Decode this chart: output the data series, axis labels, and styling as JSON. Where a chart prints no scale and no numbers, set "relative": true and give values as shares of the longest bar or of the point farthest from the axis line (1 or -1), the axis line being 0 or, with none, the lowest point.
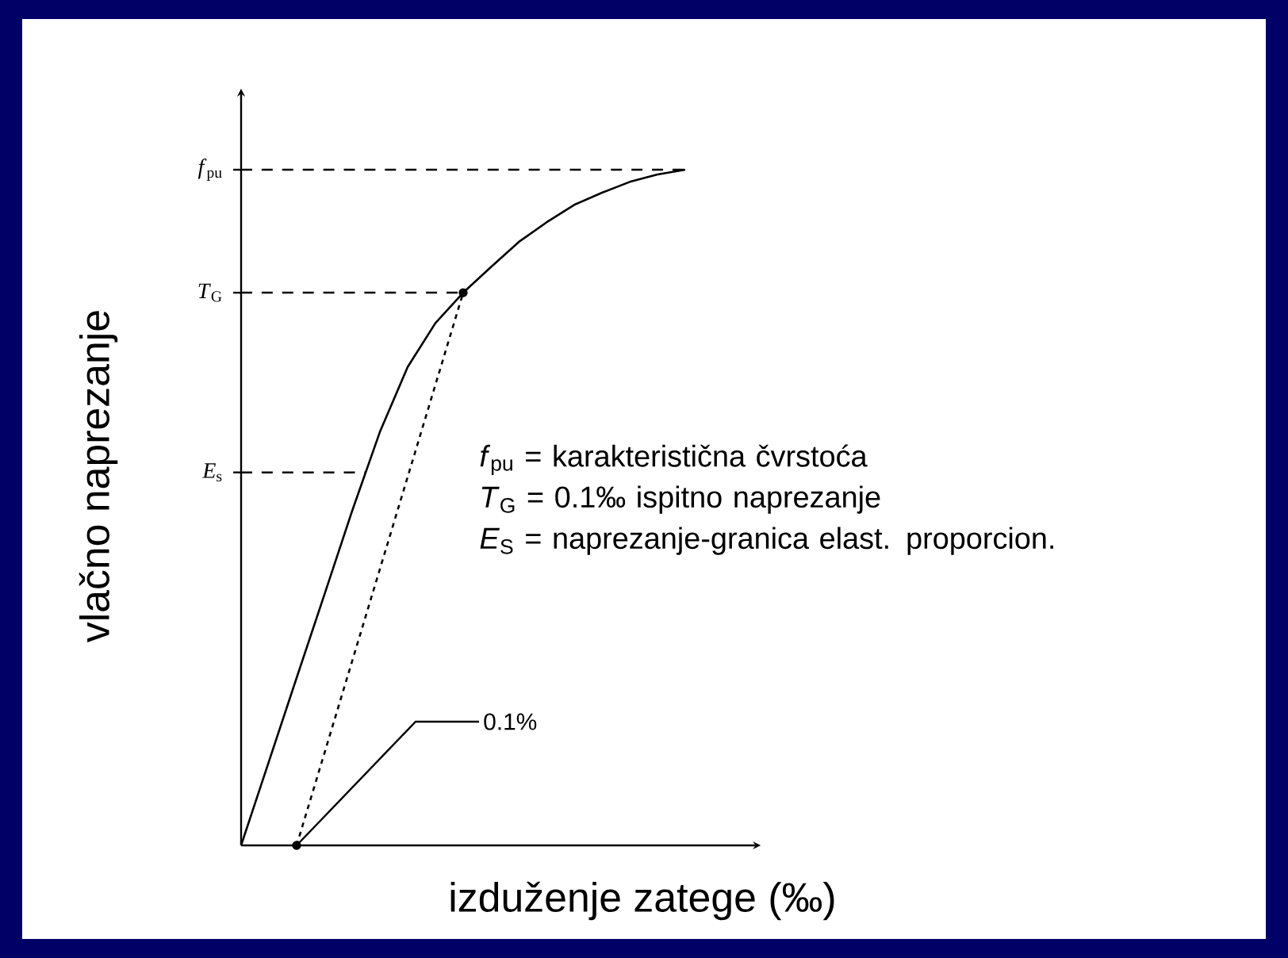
{
  "chart_data": {
    "type": "line",
    "relative": true,
    "xlabel": "izduženje zatege (‰)",
    "ylabel": "vlačno naprezanje",
    "tick_labels": false,
    "categories": [
      null,
      null,
      null,
      null,
      null,
      null,
      null,
      null,
      null,
      null,
      null,
      null,
      null,
      null,
      null,
      null,
      null
    ],
    "series": [
      {
        "color": "#000000",
        "values": [
          0,
          0.124,
          0.248,
          0.371,
          0.495,
          0.612,
          0.708,
          0.773,
          0.818,
          0.856,
          0.893,
          0.922,
          0.948,
          0.966,
          0.982,
          0.993,
          1
        ]
      },
      {
        "line_style": "dashed",
        "marker": "circle",
        "color": "#000000",
        "values": [
          null,
          null,
          0,
          null,
          null,
          null,
          null,
          null,
          0.818,
          null,
          null,
          null,
          null,
          null,
          null,
          null,
          null
        ]
      }
    ],
    "ref_lines": [
      {
        "axis": "y",
        "value": 1,
        "label": "*f*$_{pu}$",
        "line_style": "dashed"
      },
      {
        "axis": "y",
        "value": 0.818,
        "label": "*T*$_{G}$",
        "line_style": "dashed"
      },
      {
        "axis": "y",
        "value": 0.552,
        "label": "*E*$_{s}$",
        "line_style": "dashed"
      }
    ],
    "annotations": [
      "0.1%",
      "*f*$_{pu}$ = karakteristična čvrstoća",
      "*T*$_{G}$ = 0.1‰ ispitno naprezanje",
      "*E*$_{S}$ = naprezanje-granica elast. proporcion."
    ]
  }
}
